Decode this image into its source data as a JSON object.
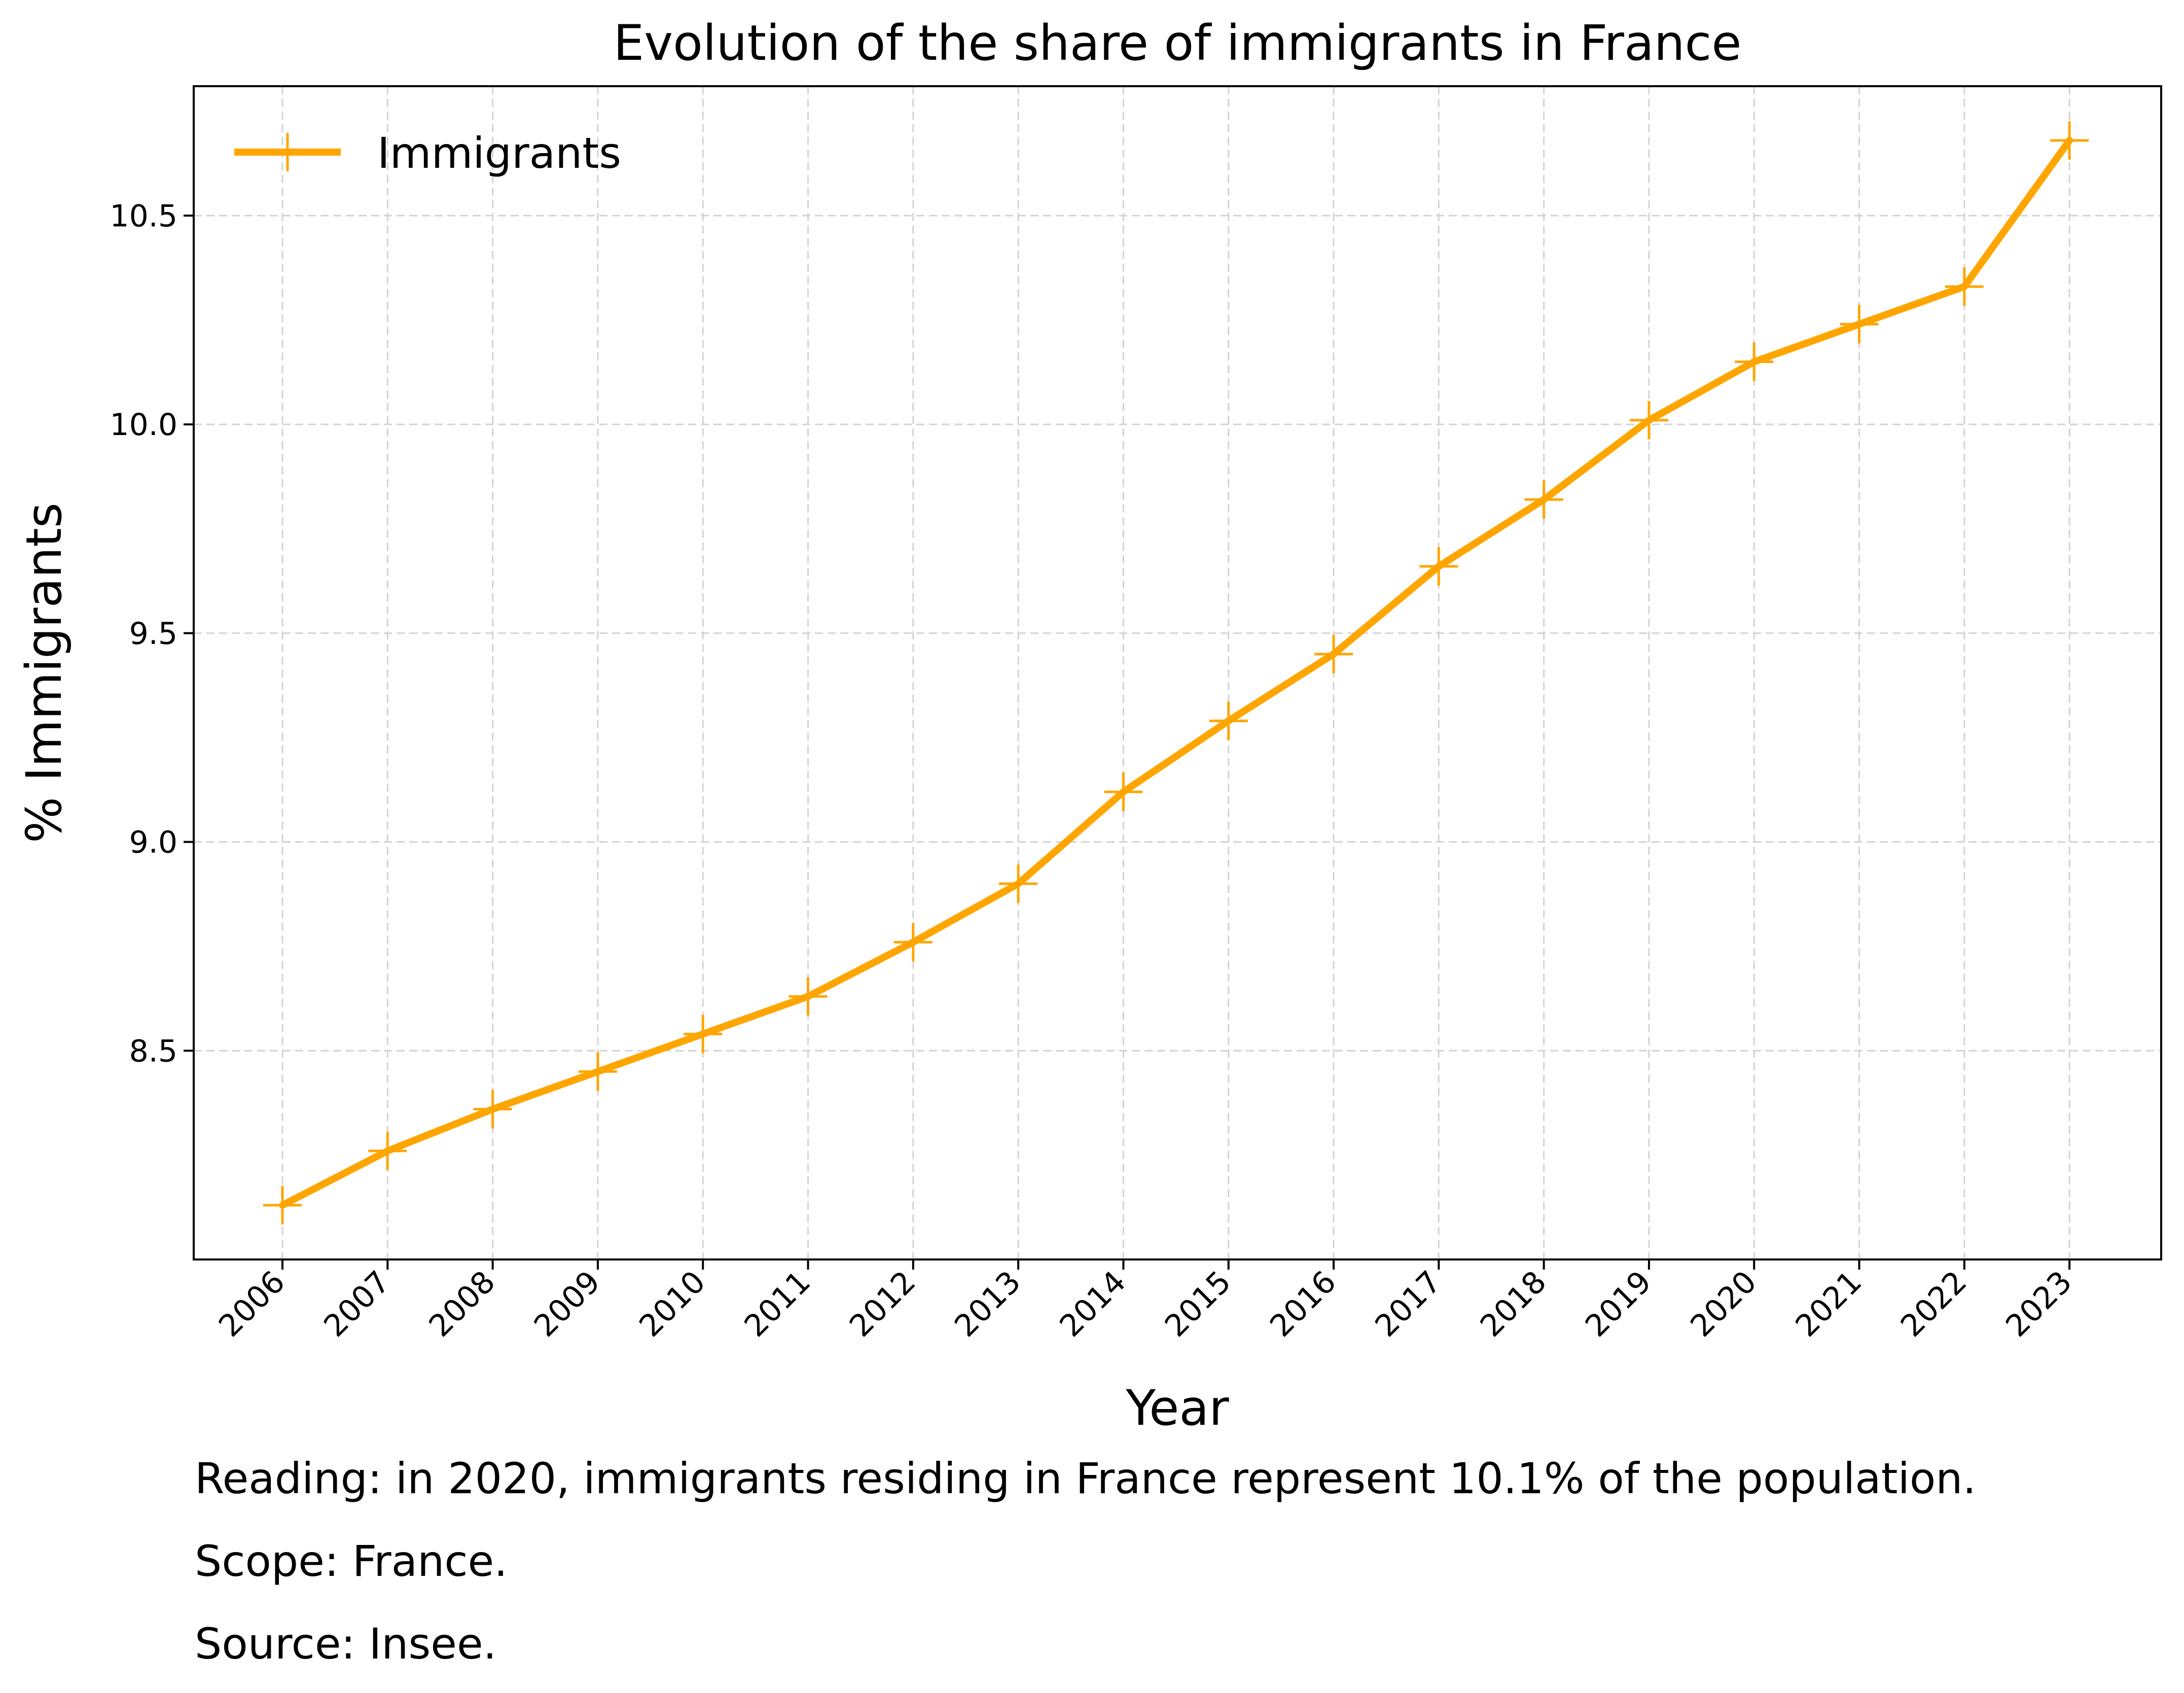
{
  "chart_data": {
    "type": "line",
    "title": "Evolution of the share of immigrants in France",
    "xlabel": "Year",
    "ylabel": "% Immigrants",
    "x": [
      "2006",
      "2007",
      "2008",
      "2009",
      "2010",
      "2011",
      "2012",
      "2013",
      "2014",
      "2015",
      "2016",
      "2017",
      "2018",
      "2019",
      "2020",
      "2021",
      "2022",
      "2023"
    ],
    "series": [
      {
        "name": "Immigrants",
        "color": "#FFA500",
        "marker": "plus",
        "values": [
          8.13,
          8.26,
          8.36,
          8.45,
          8.54,
          8.63,
          8.76,
          8.9,
          9.12,
          9.29,
          9.45,
          9.66,
          9.82,
          10.01,
          10.15,
          10.24,
          10.33,
          10.68
        ]
      }
    ],
    "ylim": [
      8.0,
      10.81
    ],
    "yticks": [
      "8.5",
      "9.0",
      "9.5",
      "10.0",
      "10.5"
    ],
    "grid": true,
    "legend": "top-left"
  },
  "notes": {
    "reading": "Reading: in 2020, immigrants residing in France represent 10.1% of the population.",
    "scope": "Scope: France.",
    "source": "Source: Insee."
  }
}
